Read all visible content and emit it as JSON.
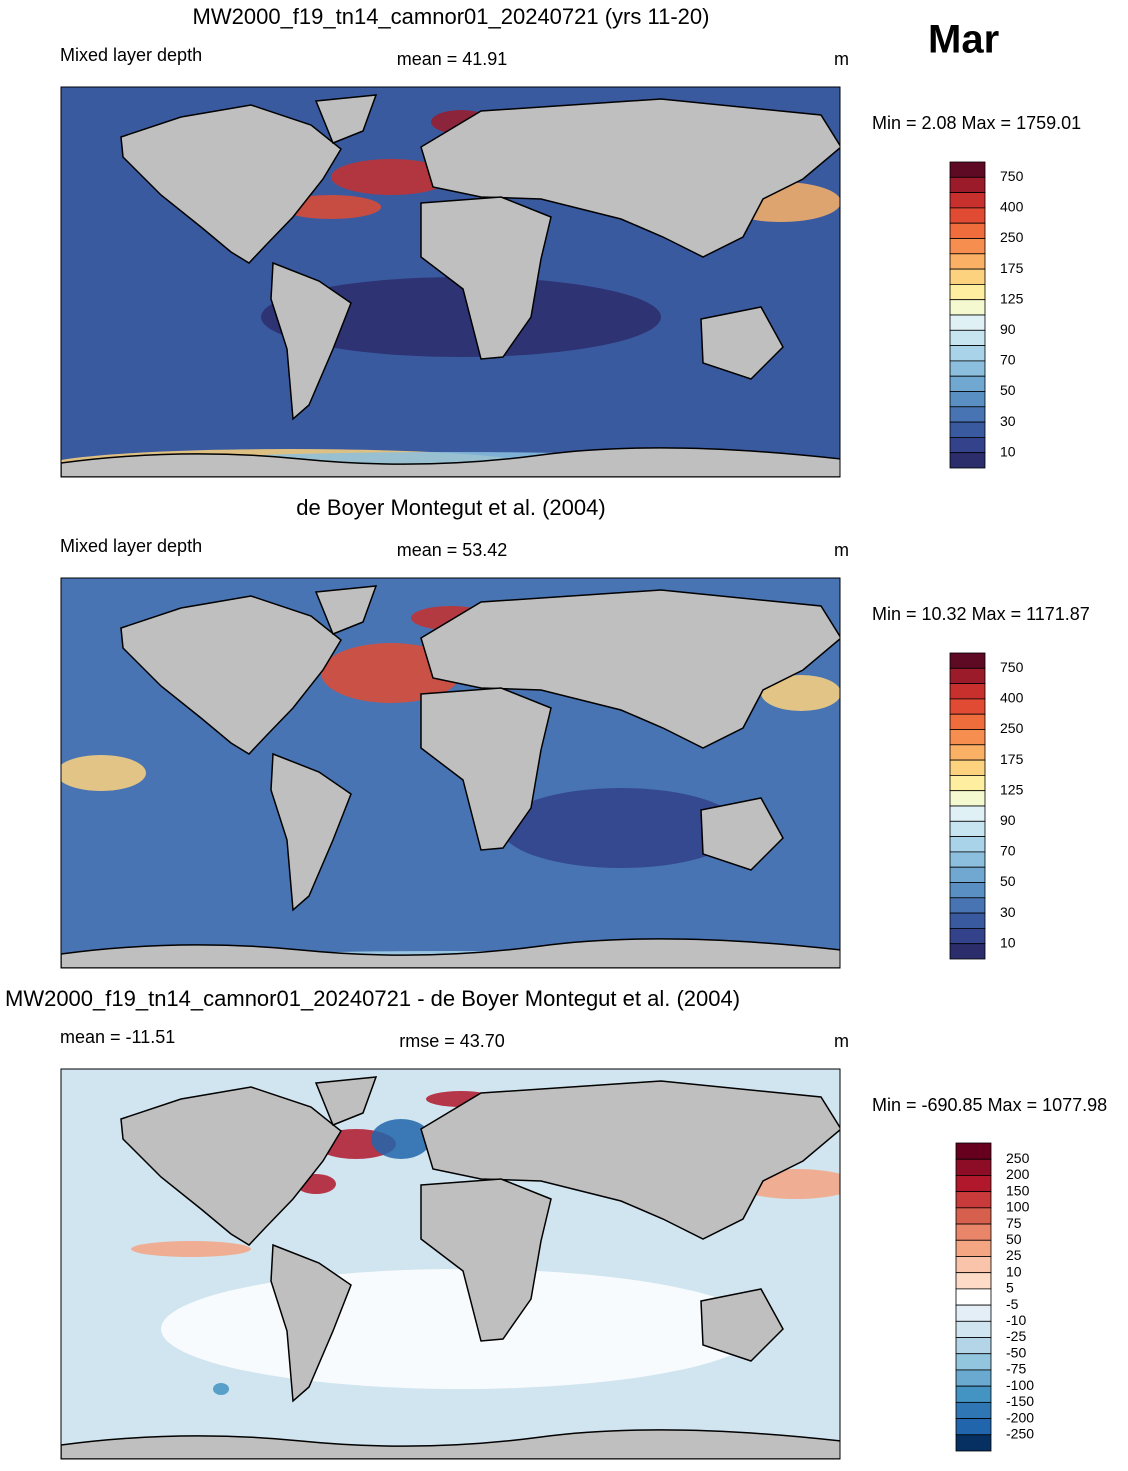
{
  "header": {
    "month": "Mar"
  },
  "panels": [
    {
      "title": "MW2000_f19_tn14_camnor01_20240721 (yrs 11-20)",
      "variable": "Mixed layer depth",
      "stat": "mean =  41.91",
      "units": "m",
      "minmax": "Min =   2.08 Max = 1759.01",
      "colorbar": {
        "labels": [
          750,
          400,
          250,
          175,
          125,
          90,
          70,
          50,
          30,
          10
        ],
        "colors": [
          "#5e0a24",
          "#9b1b2a",
          "#c8302e",
          "#e14b33",
          "#ef6c3d",
          "#f68e4f",
          "#fab166",
          "#fdd27e",
          "#fdeea0",
          "#f4f9d0",
          "#dff1f5",
          "#c6e5f0",
          "#a9d3e8",
          "#8cbfde",
          "#70a8d2",
          "#5a8fc4",
          "#4874b3",
          "#3a5aa0",
          "#33428a",
          "#2c2d6b"
        ]
      }
    },
    {
      "title": "de Boyer Montegut et al. (2004)",
      "variable": "Mixed layer depth",
      "stat": "mean =  53.42",
      "units": "m",
      "minmax": "Min =  10.32 Max = 1171.87",
      "colorbar": {
        "labels": [
          750,
          400,
          250,
          175,
          125,
          90,
          70,
          50,
          30,
          10
        ],
        "colors": [
          "#5e0a24",
          "#9b1b2a",
          "#c8302e",
          "#e14b33",
          "#ef6c3d",
          "#f68e4f",
          "#fab166",
          "#fdd27e",
          "#fdeea0",
          "#f4f9d0",
          "#dff1f5",
          "#c6e5f0",
          "#a9d3e8",
          "#8cbfde",
          "#70a8d2",
          "#5a8fc4",
          "#4874b3",
          "#3a5aa0",
          "#33428a",
          "#2c2d6b"
        ]
      }
    },
    {
      "title": "MW2000_f19_tn14_camnor01_20240721 - de Boyer Montegut et al. (2004)",
      "variable": "mean = -11.51",
      "stat": "rmse =  43.70",
      "units": "m",
      "minmax": "Min = -690.85 Max = 1077.98",
      "colorbar": {
        "labels": [
          250,
          200,
          150,
          100,
          75,
          50,
          25,
          10,
          5,
          -5,
          -10,
          -25,
          -50,
          -75,
          -100,
          -150,
          -200,
          -250
        ],
        "colors": [
          "#67001f",
          "#8e0d26",
          "#b2182b",
          "#c93a3a",
          "#d6604d",
          "#e9866a",
          "#f4a582",
          "#f9c4a9",
          "#fddbc7",
          "#ffffff",
          "#e3eef6",
          "#d1e5f0",
          "#b4d5e8",
          "#92c5de",
          "#6aa9d0",
          "#4393c3",
          "#2f77b4",
          "#2166ac",
          "#053061"
        ]
      }
    }
  ]
}
